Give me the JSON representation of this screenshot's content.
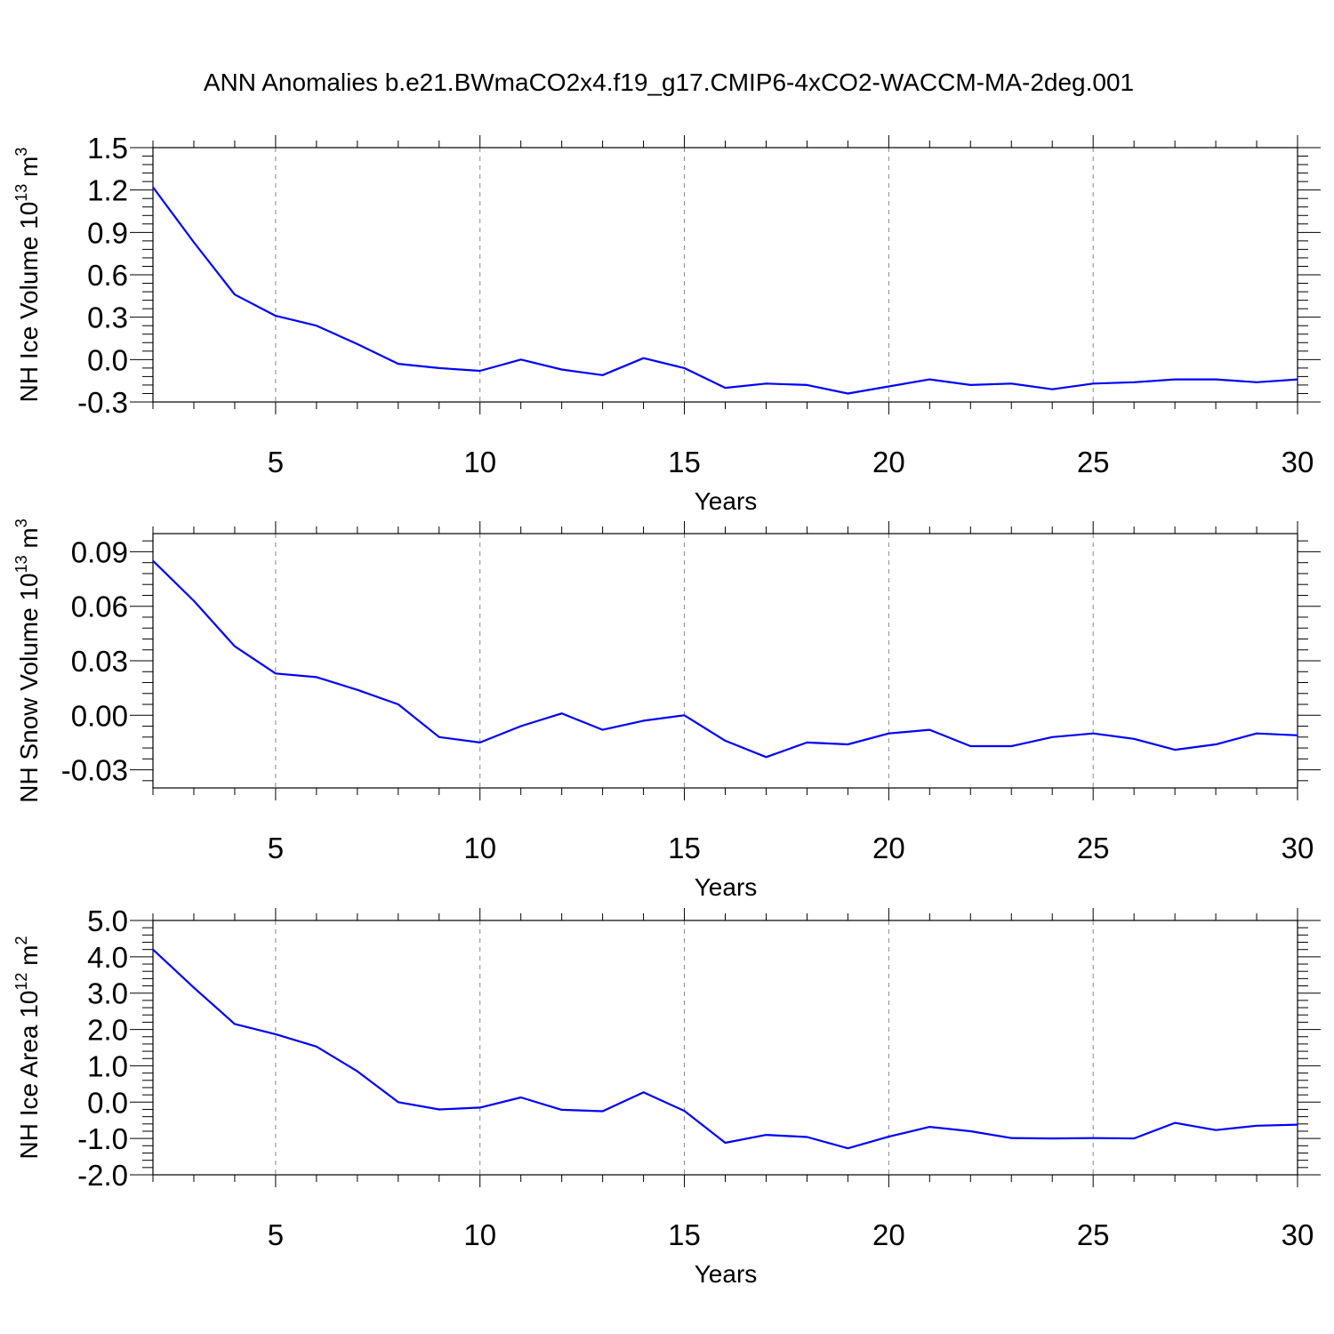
{
  "figure_title": "ANN Anomalies b.e21.BWmaCO2x4.f19_g17.CMIP6-4xCO2-WACCM-MA-2deg.001",
  "colors": {
    "line": "#0000ff",
    "axis": "#000000",
    "grid": "#888888"
  },
  "chart_data": [
    {
      "type": "line",
      "ylabel_main": "NH Ice Volume 10",
      "ylabel_exp": "13",
      "ylabel_unit": " m",
      "ylabel_unit_exp": "3",
      "xlabel": "Years",
      "xlim": [
        2,
        30
      ],
      "ylim": [
        -0.3,
        1.5
      ],
      "xticks": [
        "5",
        "10",
        "15",
        "20",
        "25",
        "30"
      ],
      "yticks": [
        "1.5",
        "1.2",
        "0.9",
        "0.6",
        "0.3",
        "0.0",
        "-0.3"
      ],
      "x": [
        2,
        3,
        4,
        5,
        6,
        7,
        8,
        9,
        10,
        11,
        12,
        13,
        14,
        15,
        16,
        17,
        18,
        19,
        20,
        21,
        22,
        23,
        24,
        25,
        26,
        27,
        28,
        29,
        30
      ],
      "values": [
        1.22,
        0.83,
        0.46,
        0.31,
        0.24,
        0.11,
        -0.03,
        -0.06,
        -0.08,
        0.0,
        -0.07,
        -0.11,
        0.01,
        -0.06,
        -0.2,
        -0.17,
        -0.18,
        -0.24,
        -0.19,
        -0.14,
        -0.18,
        -0.17,
        -0.21,
        -0.17,
        -0.16,
        -0.14,
        -0.14,
        -0.16,
        -0.14
      ]
    },
    {
      "type": "line",
      "ylabel_main": "NH Snow Volume 10",
      "ylabel_exp": "13",
      "ylabel_unit": " m",
      "ylabel_unit_exp": "3",
      "xlabel": "Years",
      "xlim": [
        2,
        30
      ],
      "ylim": [
        -0.04,
        0.1
      ],
      "xticks": [
        "5",
        "10",
        "15",
        "20",
        "25",
        "30"
      ],
      "yticks": [
        "0.09",
        "0.06",
        "0.03",
        "0.00",
        "-0.03"
      ],
      "x": [
        2,
        3,
        4,
        5,
        6,
        7,
        8,
        9,
        10,
        11,
        12,
        13,
        14,
        15,
        16,
        17,
        18,
        19,
        20,
        21,
        22,
        23,
        24,
        25,
        26,
        27,
        28,
        29,
        30
      ],
      "values": [
        0.085,
        0.063,
        0.038,
        0.023,
        0.021,
        0.014,
        0.006,
        -0.012,
        -0.015,
        -0.006,
        0.001,
        -0.008,
        -0.003,
        0.0,
        -0.014,
        -0.023,
        -0.015,
        -0.016,
        -0.01,
        -0.008,
        -0.017,
        -0.017,
        -0.012,
        -0.01,
        -0.013,
        -0.019,
        -0.016,
        -0.01,
        -0.011
      ]
    },
    {
      "type": "line",
      "ylabel_main": "NH Ice Area 10",
      "ylabel_exp": "12",
      "ylabel_unit": " m",
      "ylabel_unit_exp": "2",
      "xlabel": "Years",
      "xlim": [
        2,
        30
      ],
      "ylim": [
        -2.0,
        5.0
      ],
      "xticks": [
        "5",
        "10",
        "15",
        "20",
        "25",
        "30"
      ],
      "yticks": [
        "5.0",
        "4.0",
        "3.0",
        "2.0",
        "1.0",
        "0.0",
        "-1.0",
        "-2.0"
      ],
      "x": [
        2,
        3,
        4,
        5,
        6,
        7,
        8,
        9,
        10,
        11,
        12,
        13,
        14,
        15,
        16,
        17,
        18,
        19,
        20,
        21,
        22,
        23,
        24,
        25,
        26,
        27,
        28,
        29,
        30
      ],
      "values": [
        4.2,
        3.15,
        2.15,
        1.87,
        1.53,
        0.85,
        0.0,
        -0.2,
        -0.15,
        0.13,
        -0.21,
        -0.25,
        0.27,
        -0.24,
        -1.12,
        -0.9,
        -0.96,
        -1.27,
        -0.95,
        -0.68,
        -0.8,
        -0.99,
        -1.0,
        -0.99,
        -1.0,
        -0.57,
        -0.77,
        -0.65,
        -0.62
      ]
    }
  ]
}
